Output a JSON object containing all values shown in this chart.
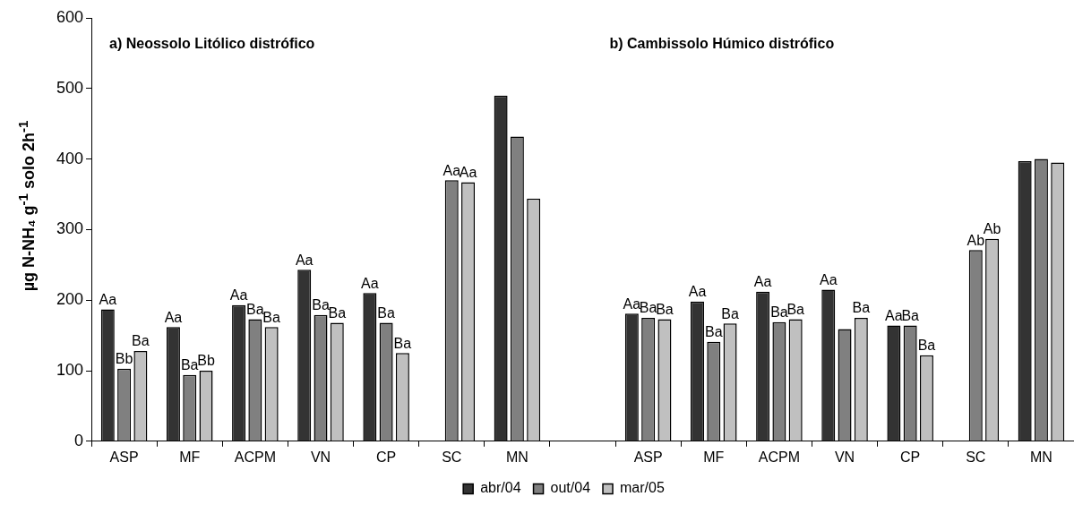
{
  "chart_data": {
    "type": "bar",
    "ylabel": "µg N-NH₄ g$^{-1}$ solo 2h$^{-1}$",
    "annotations": [
      "a) Neossolo Litólico distrófico",
      "b) Cambissolo Húmico distrófico"
    ],
    "categories": [
      "ASP",
      "MF",
      "ACPM",
      "VN",
      "CP",
      "SC",
      "MN",
      null,
      "ASP",
      "MF",
      "ACPM",
      "VN",
      "CP",
      "SC",
      "MN"
    ],
    "series": [
      {
        "name": "abr/04",
        "color": "#333333",
        "values": [
          187,
          162,
          193,
          243,
          210,
          null,
          490,
          null,
          181,
          198,
          212,
          215,
          164,
          null,
          397
        ],
        "value_labels": [
          "Aa",
          "Aa",
          "Aa",
          "Aa",
          "Aa",
          null,
          null,
          null,
          "Aa",
          "Aa",
          "Aa",
          "Aa",
          "Aa",
          null,
          null
        ]
      },
      {
        "name": "out/04",
        "color": "#808080",
        "values": [
          103,
          94,
          173,
          179,
          168,
          370,
          432,
          null,
          175,
          141,
          169,
          159,
          164,
          271,
          400
        ],
        "value_labels": [
          "Bb",
          "Ba",
          "Ba",
          "Ba",
          "Ba",
          "Aa",
          null,
          null,
          "Ba",
          "Ba",
          "Ba",
          null,
          "Ba",
          "Ab",
          null
        ]
      },
      {
        "name": "mar/05",
        "color": "#c0c0c0",
        "values": [
          128,
          100,
          162,
          168,
          125,
          367,
          344,
          null,
          173,
          167,
          173,
          175,
          122,
          287,
          395
        ],
        "value_labels": [
          "Ba",
          "Bb",
          "Ba",
          "Ba",
          "Ba",
          "Aa",
          null,
          null,
          "Ba",
          "Ba",
          "Ba",
          "Ba",
          "Ba",
          "Ab",
          null
        ]
      }
    ],
    "ylim": [
      0,
      600
    ],
    "yticks": [
      0,
      100,
      200,
      300,
      400,
      500,
      600
    ],
    "grid": false,
    "legend": "bottom"
  }
}
